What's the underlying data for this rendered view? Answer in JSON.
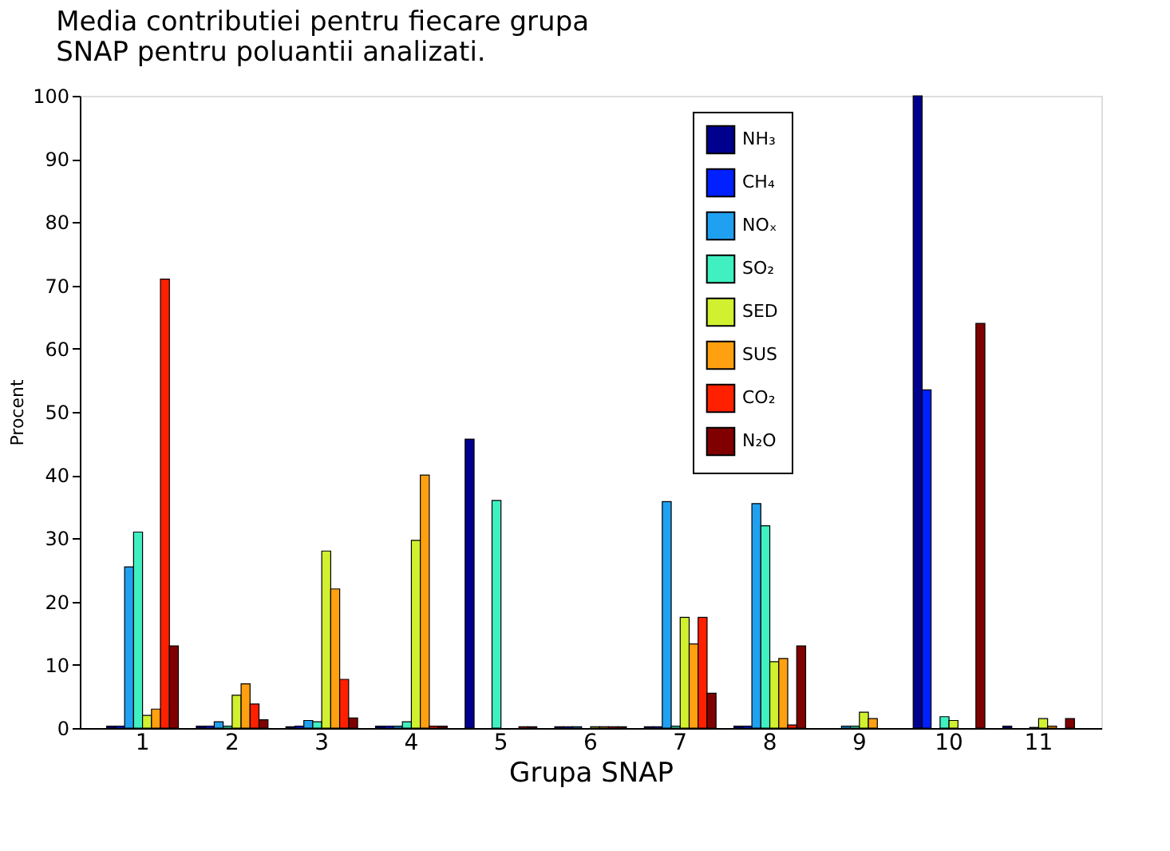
{
  "chart_data": {
    "type": "bar",
    "title": [
      "Media contributiei pentru fiecare grupa",
      "SNAP pentru poluantii analizati."
    ],
    "xlabel": "Grupa SNAP",
    "ylabel": "Procent",
    "categories": [
      "1",
      "2",
      "3",
      "4",
      "5",
      "6",
      "7",
      "8",
      "9",
      "10",
      "11"
    ],
    "series": [
      {
        "name": "NH₃",
        "color": "#00008f",
        "values": [
          0.3,
          0.3,
          0.2,
          0.3,
          45.7,
          0.2,
          0.2,
          0.3,
          null,
          100,
          0.3
        ]
      },
      {
        "name": "CH₄",
        "color": "#0020ff",
        "values": [
          0.3,
          0.3,
          0.3,
          0.3,
          null,
          0.2,
          0.2,
          0.3,
          null,
          53.5,
          null
        ]
      },
      {
        "name": "NOₓ",
        "color": "#20a0f0",
        "values": [
          25.5,
          1,
          1.2,
          0.3,
          null,
          0.2,
          35.8,
          35.5,
          0.3,
          null,
          null
        ]
      },
      {
        "name": "SO₂",
        "color": "#40f0c0",
        "values": [
          31,
          0.3,
          1,
          1,
          36,
          null,
          0.3,
          32,
          0.3,
          1.8,
          0.1
        ]
      },
      {
        "name": "SED",
        "color": "#d0f030",
        "values": [
          2,
          5.2,
          28,
          29.7,
          null,
          0.2,
          17.5,
          10.5,
          2.5,
          1.2,
          1.5
        ]
      },
      {
        "name": "SUS",
        "color": "#ffa010",
        "values": [
          3,
          7,
          22,
          40,
          null,
          0.2,
          13.3,
          11,
          1.5,
          null,
          0.3
        ]
      },
      {
        "name": "CO₂",
        "color": "#ff2000",
        "values": [
          71,
          3.8,
          7.7,
          0.3,
          0.2,
          0.2,
          17.5,
          0.5,
          null,
          null,
          null
        ]
      },
      {
        "name": "N₂O",
        "color": "#800000",
        "values": [
          13,
          1.3,
          1.6,
          0.3,
          0.2,
          0.2,
          5.5,
          13,
          null,
          64,
          1.5
        ]
      }
    ],
    "ylim": [
      0,
      100
    ],
    "yticks": [
      0,
      10,
      20,
      30,
      40,
      50,
      60,
      70,
      80,
      90,
      100
    ],
    "legend": "top"
  }
}
